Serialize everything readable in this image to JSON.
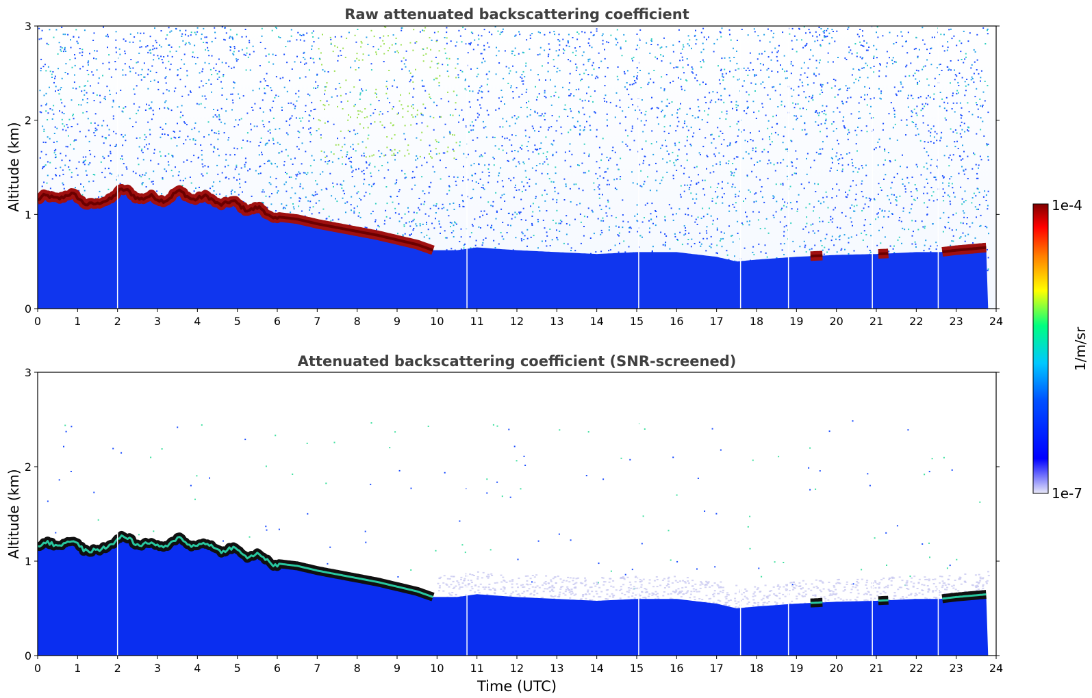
{
  "chart_data": [
    {
      "type": "heatmap",
      "title": "Raw attenuated backscattering coefficient",
      "xlabel": "",
      "ylabel": "Altitude (km)",
      "xlim": [
        0,
        24
      ],
      "ylim": [
        0,
        3
      ],
      "xticks": [
        "0",
        "1",
        "2",
        "3",
        "4",
        "5",
        "6",
        "7",
        "8",
        "9",
        "10",
        "11",
        "12",
        "13",
        "14",
        "15",
        "16",
        "17",
        "18",
        "19",
        "20",
        "21",
        "22",
        "23",
        "24"
      ],
      "yticks": [
        "0",
        "1",
        "2",
        "3"
      ],
      "layer_top_km": {
        "time": [
          0,
          0.5,
          1,
          1.5,
          2,
          2.5,
          3,
          3.5,
          4,
          4.5,
          5,
          5.5,
          5.9,
          6.5,
          7,
          7.5,
          8,
          8.5,
          9,
          9.5,
          9.9,
          10.5,
          11,
          12,
          13,
          14,
          15,
          16,
          17,
          17.5,
          18,
          19,
          20,
          21,
          22,
          22.6,
          23,
          23.8
        ],
        "altitude": [
          1.15,
          1.2,
          1.18,
          1.08,
          1.25,
          1.2,
          1.15,
          1.22,
          1.18,
          1.14,
          1.1,
          1.05,
          0.98,
          0.95,
          0.9,
          0.86,
          0.82,
          0.78,
          0.73,
          0.68,
          0.62,
          0.62,
          0.65,
          0.62,
          0.6,
          0.58,
          0.6,
          0.6,
          0.55,
          0.5,
          0.52,
          0.55,
          0.57,
          0.58,
          0.6,
          0.6,
          0.62,
          0.65
        ]
      },
      "data_gaps_utc": [
        2.0,
        10.75,
        15.05,
        17.6,
        18.8,
        20.9,
        22.55
      ]
    },
    {
      "type": "heatmap",
      "title": "Attenuated backscattering coefficient (SNR-screened)",
      "xlabel": "Time (UTC)",
      "ylabel": "Altitude (km)",
      "xlim": [
        0,
        24
      ],
      "ylim": [
        0,
        3
      ],
      "xticks": [
        "0",
        "1",
        "2",
        "3",
        "4",
        "5",
        "6",
        "7",
        "8",
        "9",
        "10",
        "11",
        "12",
        "13",
        "14",
        "15",
        "16",
        "17",
        "18",
        "19",
        "20",
        "21",
        "22",
        "23",
        "24"
      ],
      "yticks": [
        "0",
        "1",
        "2",
        "3"
      ],
      "layer_top_km": {
        "time": [
          0,
          0.5,
          1,
          1.5,
          2,
          2.5,
          3,
          3.5,
          4,
          4.5,
          5,
          5.5,
          5.9,
          6.5,
          7,
          7.5,
          8,
          8.5,
          9,
          9.5,
          9.9,
          10.5,
          11,
          12,
          13,
          14,
          15,
          16,
          17,
          17.5,
          18,
          19,
          20,
          21,
          22,
          22.6,
          23,
          23.8
        ],
        "altitude": [
          1.15,
          1.2,
          1.18,
          1.08,
          1.25,
          1.2,
          1.15,
          1.22,
          1.18,
          1.14,
          1.1,
          1.05,
          0.98,
          0.95,
          0.9,
          0.86,
          0.82,
          0.78,
          0.73,
          0.68,
          0.62,
          0.62,
          0.65,
          0.62,
          0.6,
          0.58,
          0.6,
          0.6,
          0.55,
          0.5,
          0.52,
          0.55,
          0.57,
          0.58,
          0.6,
          0.6,
          0.62,
          0.65
        ]
      },
      "data_gaps_utc": [
        2.0,
        10.75,
        15.05,
        17.6,
        18.8,
        20.9,
        22.55
      ]
    }
  ],
  "colorbar": {
    "label": "1/m/sr",
    "max_label": "1e-4",
    "min_label": "1e-7",
    "stops": [
      "#e8e8f8",
      "#0000ff",
      "#00c8ff",
      "#00ff80",
      "#ffff00",
      "#ff7f00",
      "#ff0000",
      "#800000"
    ]
  },
  "colors": {
    "title_text": "#404040",
    "layer_raw": "#a01010",
    "layer_snr": "#101010",
    "below_layer": "#1030ee",
    "noise_primary": "#1a4cff",
    "noise_secondary": "#20a0e8"
  }
}
